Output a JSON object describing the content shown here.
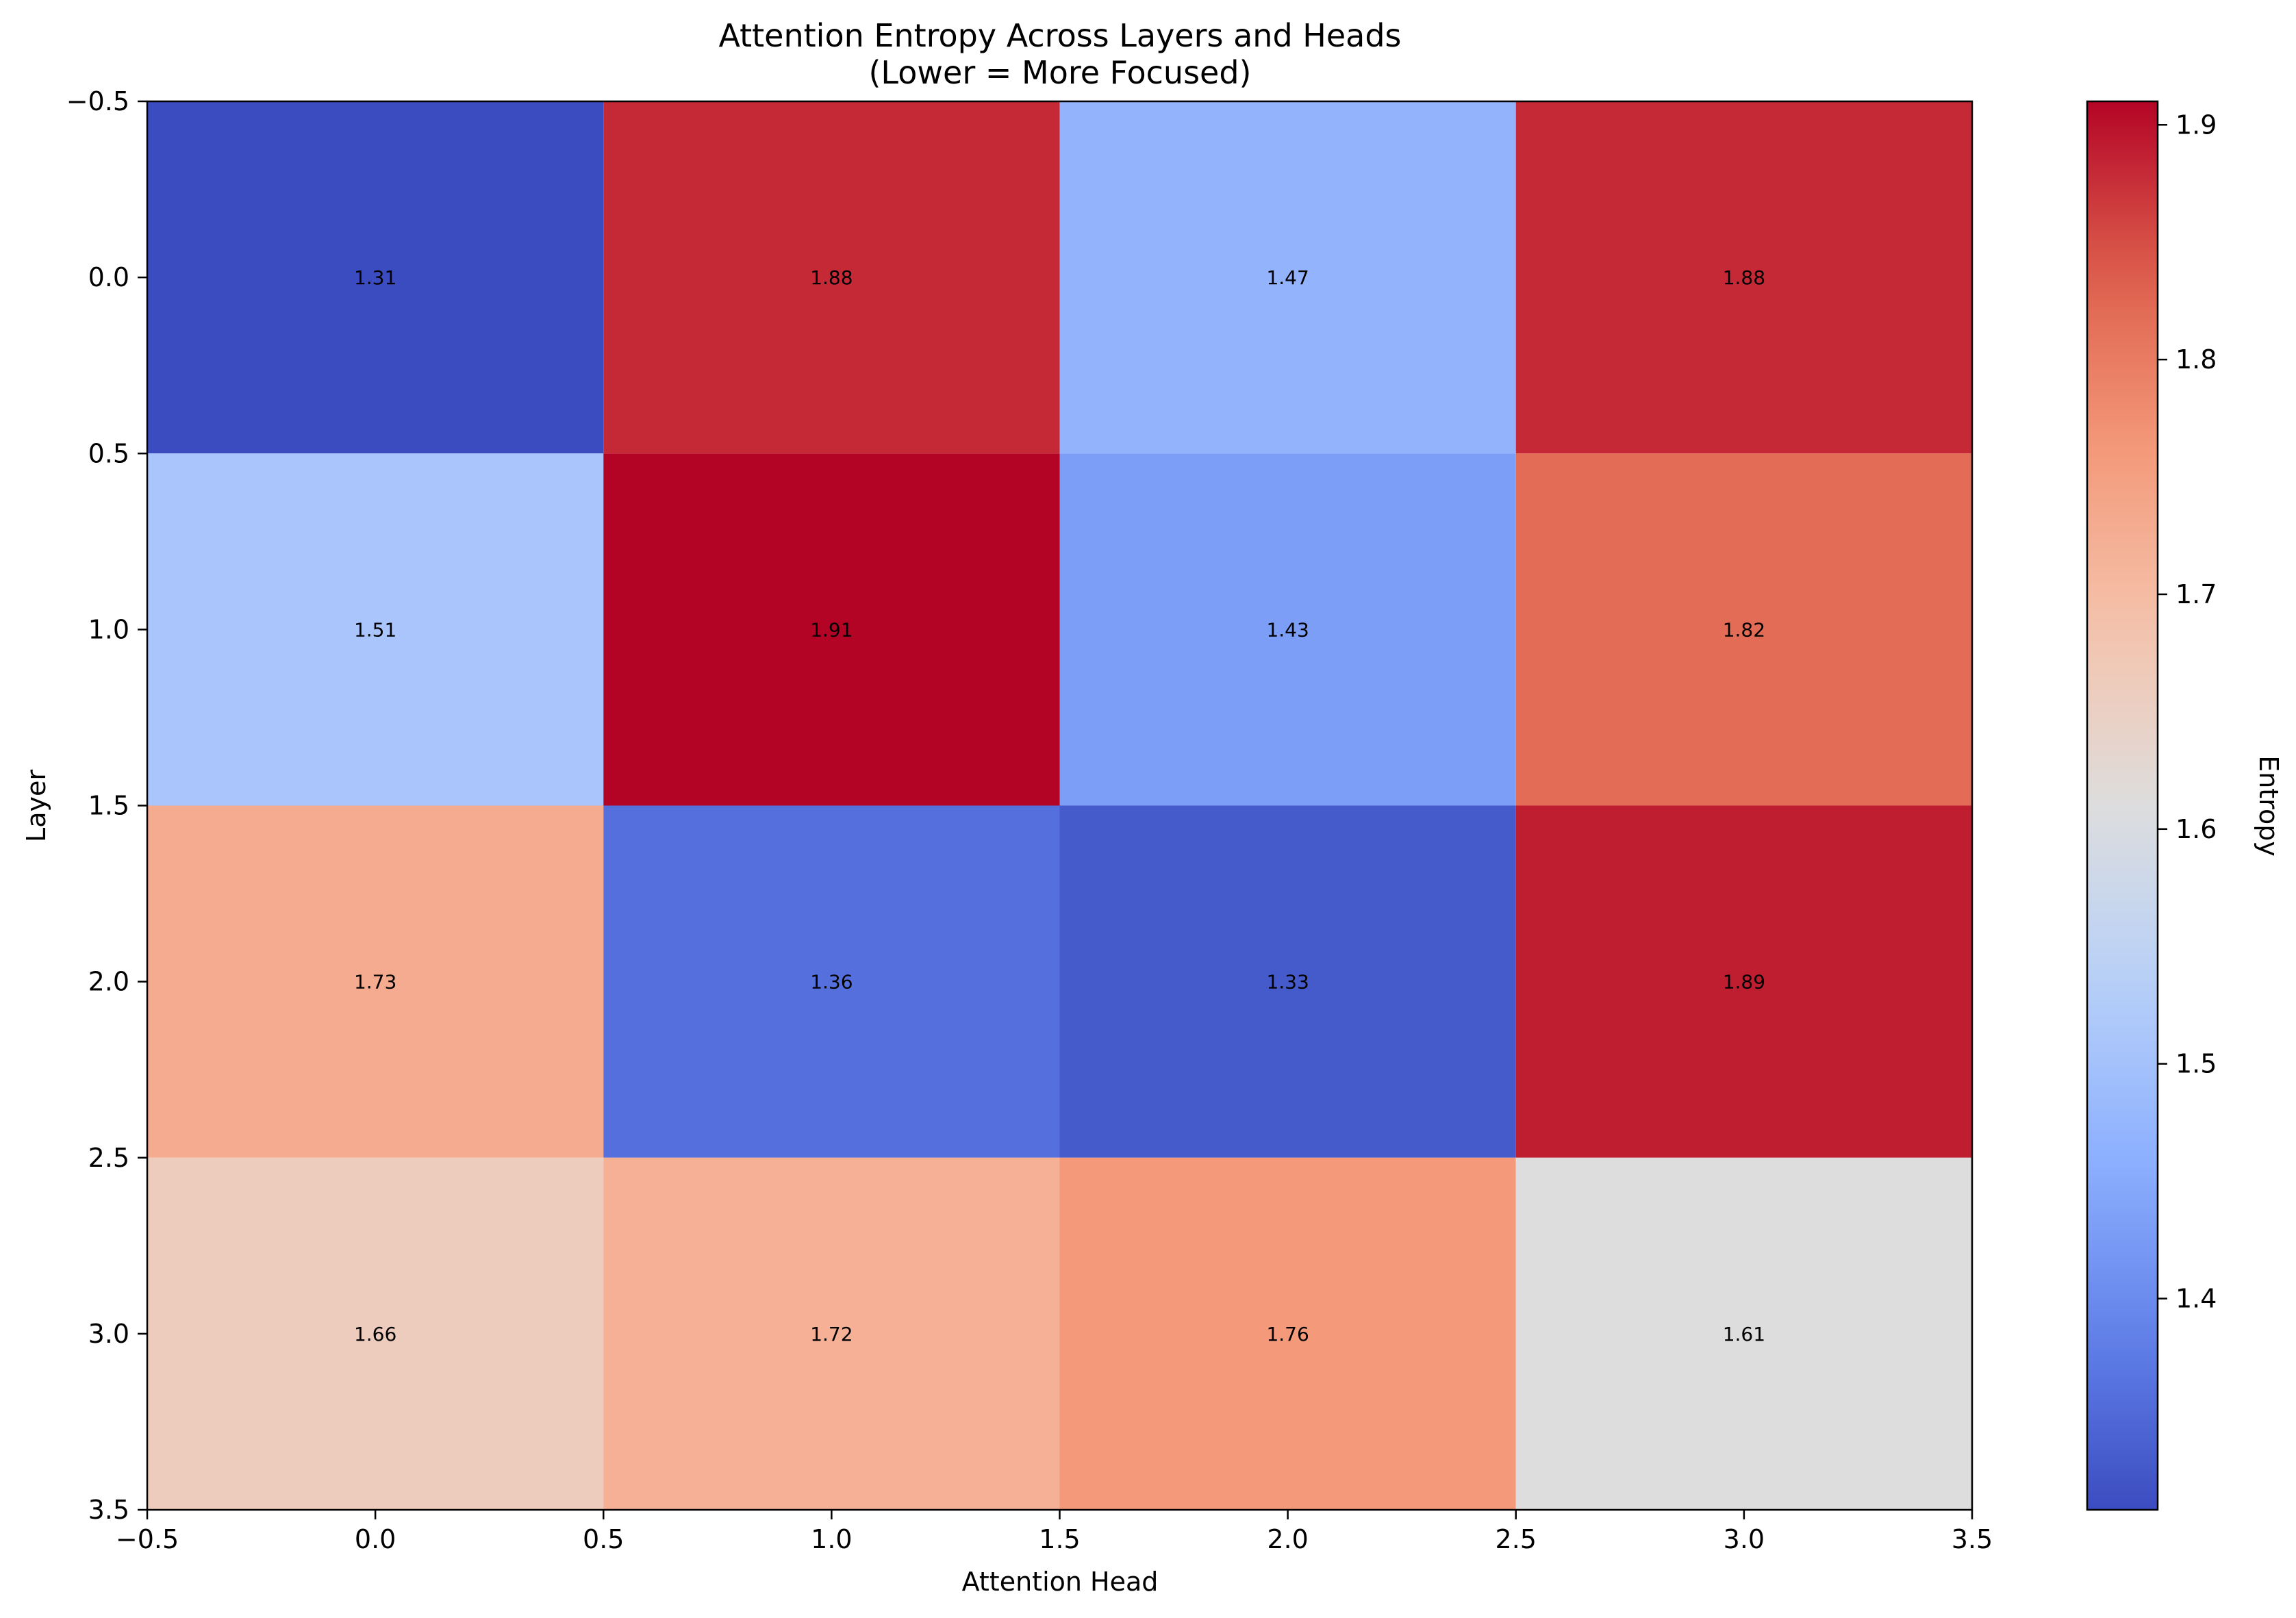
{
  "chart_data": {
    "type": "heatmap",
    "title": "Attention Entropy Across Layers and Heads",
    "subtitle": "(Lower = More Focused)",
    "xlabel": "Attention Head",
    "ylabel": "Layer",
    "colorbar_label": "Entropy",
    "colormap": "coolwarm",
    "x_ticks": [
      "−0.5",
      "0.0",
      "0.5",
      "1.0",
      "1.5",
      "2.0",
      "2.5",
      "3.0",
      "3.5"
    ],
    "y_ticks": [
      "−0.5",
      "0.0",
      "0.5",
      "1.0",
      "1.5",
      "2.0",
      "2.5",
      "3.0",
      "3.5"
    ],
    "xlim": [
      -0.5,
      3.5
    ],
    "ylim": [
      3.5,
      -0.5
    ],
    "values": [
      [
        1.31,
        1.88,
        1.47,
        1.88
      ],
      [
        1.51,
        1.91,
        1.43,
        1.82
      ],
      [
        1.73,
        1.36,
        1.33,
        1.89
      ],
      [
        1.66,
        1.72,
        1.76,
        1.61
      ]
    ],
    "value_labels": [
      [
        "1.31",
        "1.88",
        "1.47",
        "1.88"
      ],
      [
        "1.51",
        "1.91",
        "1.43",
        "1.82"
      ],
      [
        "1.73",
        "1.36",
        "1.33",
        "1.89"
      ],
      [
        "1.66",
        "1.72",
        "1.76",
        "1.61"
      ]
    ],
    "color_range": [
      1.31,
      1.91
    ],
    "colorbar_ticks": [
      1.4,
      1.5,
      1.6,
      1.7,
      1.8,
      1.9
    ],
    "colorbar_tick_labels": [
      "1.4",
      "1.5",
      "1.6",
      "1.7",
      "1.8",
      "1.9"
    ],
    "grid": false,
    "legend": "none"
  }
}
